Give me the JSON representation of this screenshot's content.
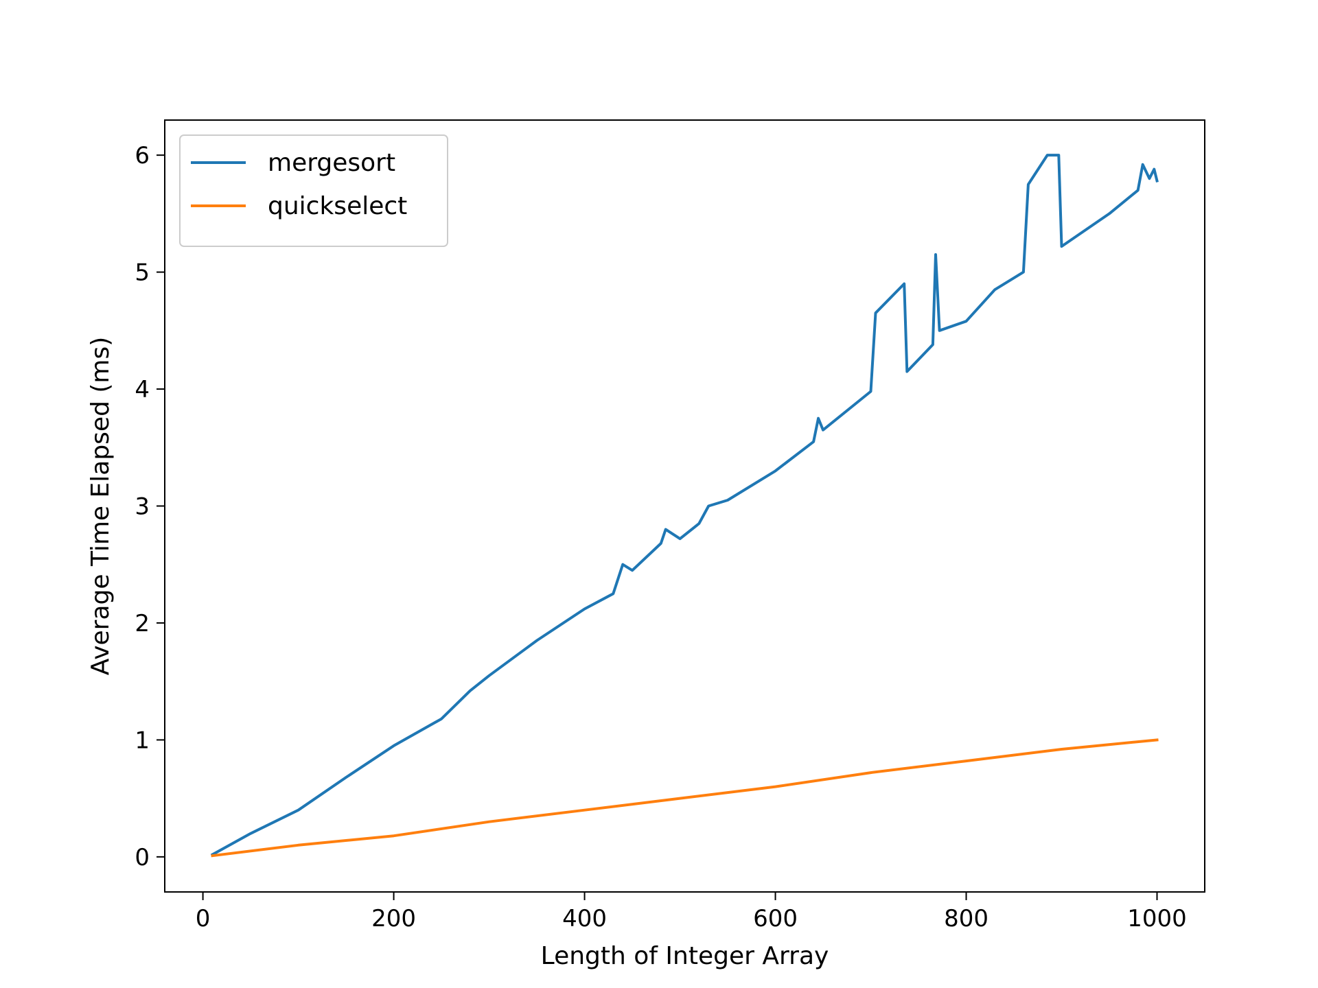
{
  "chart_data": {
    "type": "line",
    "title": "",
    "xlabel": "Length of Integer Array",
    "ylabel": "Average Time Elapsed (ms)",
    "xlim": [
      -40,
      1050
    ],
    "ylim": [
      -0.3,
      6.3
    ],
    "xticks": [
      0,
      200,
      400,
      600,
      800,
      1000
    ],
    "yticks": [
      0,
      1,
      2,
      3,
      4,
      5,
      6
    ],
    "grid": false,
    "legend_position": "top-left",
    "series": [
      {
        "name": "mergesort",
        "color": "#1f77b4",
        "points": [
          [
            10,
            0.02
          ],
          [
            50,
            0.2
          ],
          [
            100,
            0.4
          ],
          [
            150,
            0.68
          ],
          [
            200,
            0.95
          ],
          [
            250,
            1.18
          ],
          [
            280,
            1.42
          ],
          [
            300,
            1.55
          ],
          [
            350,
            1.85
          ],
          [
            400,
            2.12
          ],
          [
            430,
            2.25
          ],
          [
            440,
            2.5
          ],
          [
            450,
            2.45
          ],
          [
            480,
            2.68
          ],
          [
            485,
            2.8
          ],
          [
            500,
            2.72
          ],
          [
            520,
            2.85
          ],
          [
            530,
            3.0
          ],
          [
            550,
            3.05
          ],
          [
            600,
            3.3
          ],
          [
            640,
            3.55
          ],
          [
            645,
            3.75
          ],
          [
            650,
            3.65
          ],
          [
            700,
            3.98
          ],
          [
            705,
            4.65
          ],
          [
            735,
            4.9
          ],
          [
            738,
            4.15
          ],
          [
            765,
            4.38
          ],
          [
            768,
            5.15
          ],
          [
            772,
            4.5
          ],
          [
            800,
            4.58
          ],
          [
            830,
            4.85
          ],
          [
            860,
            5.0
          ],
          [
            865,
            5.75
          ],
          [
            885,
            6.0
          ],
          [
            897,
            6.0
          ],
          [
            900,
            5.22
          ],
          [
            950,
            5.5
          ],
          [
            980,
            5.7
          ],
          [
            985,
            5.92
          ],
          [
            992,
            5.8
          ],
          [
            997,
            5.88
          ],
          [
            1000,
            5.78
          ]
        ]
      },
      {
        "name": "quickselect",
        "color": "#ff7f0e",
        "points": [
          [
            10,
            0.01
          ],
          [
            100,
            0.1
          ],
          [
            200,
            0.18
          ],
          [
            300,
            0.3
          ],
          [
            400,
            0.4
          ],
          [
            500,
            0.5
          ],
          [
            600,
            0.6
          ],
          [
            700,
            0.72
          ],
          [
            800,
            0.82
          ],
          [
            900,
            0.92
          ],
          [
            1000,
            1.0
          ]
        ]
      }
    ]
  }
}
